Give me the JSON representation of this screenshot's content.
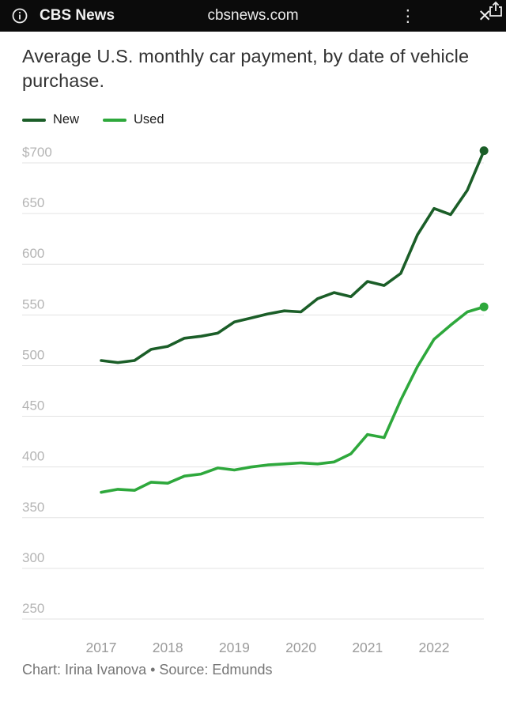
{
  "browser_bar": {
    "site_name": "CBS News",
    "url": "cbsnews.com",
    "info_icon": "info-icon",
    "menu_icon": "kebab-menu-icon",
    "close_icon": "close-icon",
    "close_glyph": "✕",
    "kebab_glyph": "⋮",
    "share_icon": "share-icon"
  },
  "chart_data": {
    "type": "line",
    "title": "Average U.S. monthly car payment, by date of vehicle purchase.",
    "legend_position": "top",
    "grid": true,
    "x": [
      2017.0,
      2017.25,
      2017.5,
      2017.75,
      2018.0,
      2018.25,
      2018.5,
      2018.75,
      2019.0,
      2019.25,
      2019.5,
      2019.75,
      2020.0,
      2020.25,
      2020.5,
      2020.75,
      2021.0,
      2021.25,
      2021.5,
      2021.75,
      2022.0,
      2022.25,
      2022.5,
      2022.75
    ],
    "series": [
      {
        "name": "New",
        "color": "#1b5e28",
        "values": [
          505,
          503,
          505,
          516,
          519,
          527,
          529,
          532,
          543,
          547,
          551,
          554,
          553,
          566,
          572,
          568,
          583,
          579,
          591,
          629,
          655,
          649,
          673,
          712
        ]
      },
      {
        "name": "Used",
        "color": "#2ea83c",
        "values": [
          375,
          378,
          377,
          385,
          384,
          391,
          393,
          399,
          397,
          400,
          402,
          403,
          404,
          403,
          405,
          413,
          432,
          429,
          466,
          499,
          526,
          540,
          553,
          558
        ]
      }
    ],
    "y_ticks": [
      700,
      650,
      600,
      550,
      500,
      450,
      400,
      350,
      300,
      250
    ],
    "y_tick_labels": [
      "$700",
      "650",
      "600",
      "550",
      "500",
      "450",
      "400",
      "350",
      "300",
      "250"
    ],
    "x_ticks": [
      2017,
      2018,
      2019,
      2020,
      2021,
      2022
    ],
    "ylim": [
      250,
      720
    ],
    "xlabel": "",
    "ylabel": ""
  },
  "footer": {
    "credit": "Chart: Irina Ivanova • Source: Edmunds"
  }
}
